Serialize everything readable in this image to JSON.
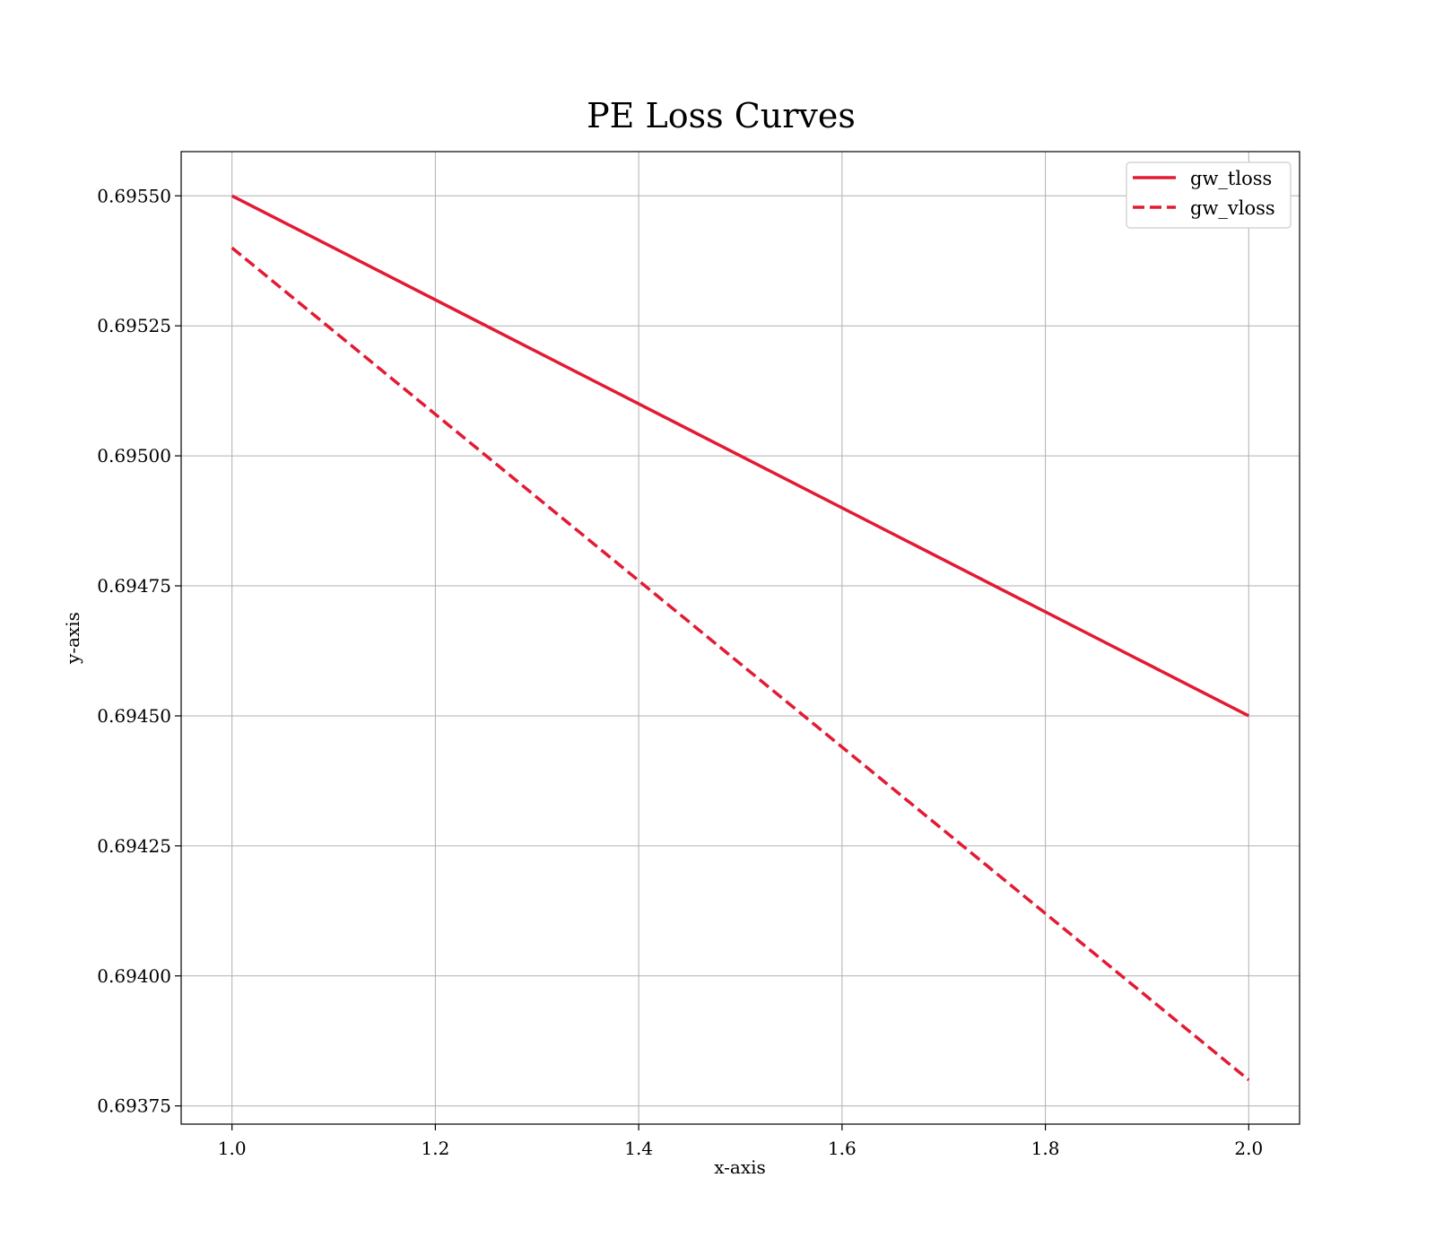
{
  "chart_data": {
    "type": "line",
    "title": "PE Loss Curves",
    "xlabel": "x-axis",
    "ylabel": "y-axis",
    "xlim": [
      0.95,
      2.05
    ],
    "ylim": [
      0.693715,
      0.695585
    ],
    "x_ticks": [
      1.0,
      1.2,
      1.4,
      1.6,
      1.8,
      2.0
    ],
    "x_tick_labels": [
      "1.0",
      "1.2",
      "1.4",
      "1.6",
      "1.8",
      "2.0"
    ],
    "y_ticks": [
      0.69375,
      0.694,
      0.69425,
      0.6945,
      0.69475,
      0.695,
      0.69525,
      0.6955
    ],
    "y_tick_labels": [
      "0.69375",
      "0.69400",
      "0.69425",
      "0.69450",
      "0.69475",
      "0.69500",
      "0.69525",
      "0.69550"
    ],
    "grid": true,
    "legend_position": "top-right",
    "series": [
      {
        "name": "gw_tloss",
        "style": "solid",
        "color": "#e31a34",
        "x": [
          1.0,
          2.0
        ],
        "y": [
          0.6955,
          0.6945
        ]
      },
      {
        "name": "gw_vloss",
        "style": "dashed",
        "color": "#e31a34",
        "x": [
          1.0,
          2.0
        ],
        "y": [
          0.6954,
          0.6938
        ]
      }
    ]
  }
}
